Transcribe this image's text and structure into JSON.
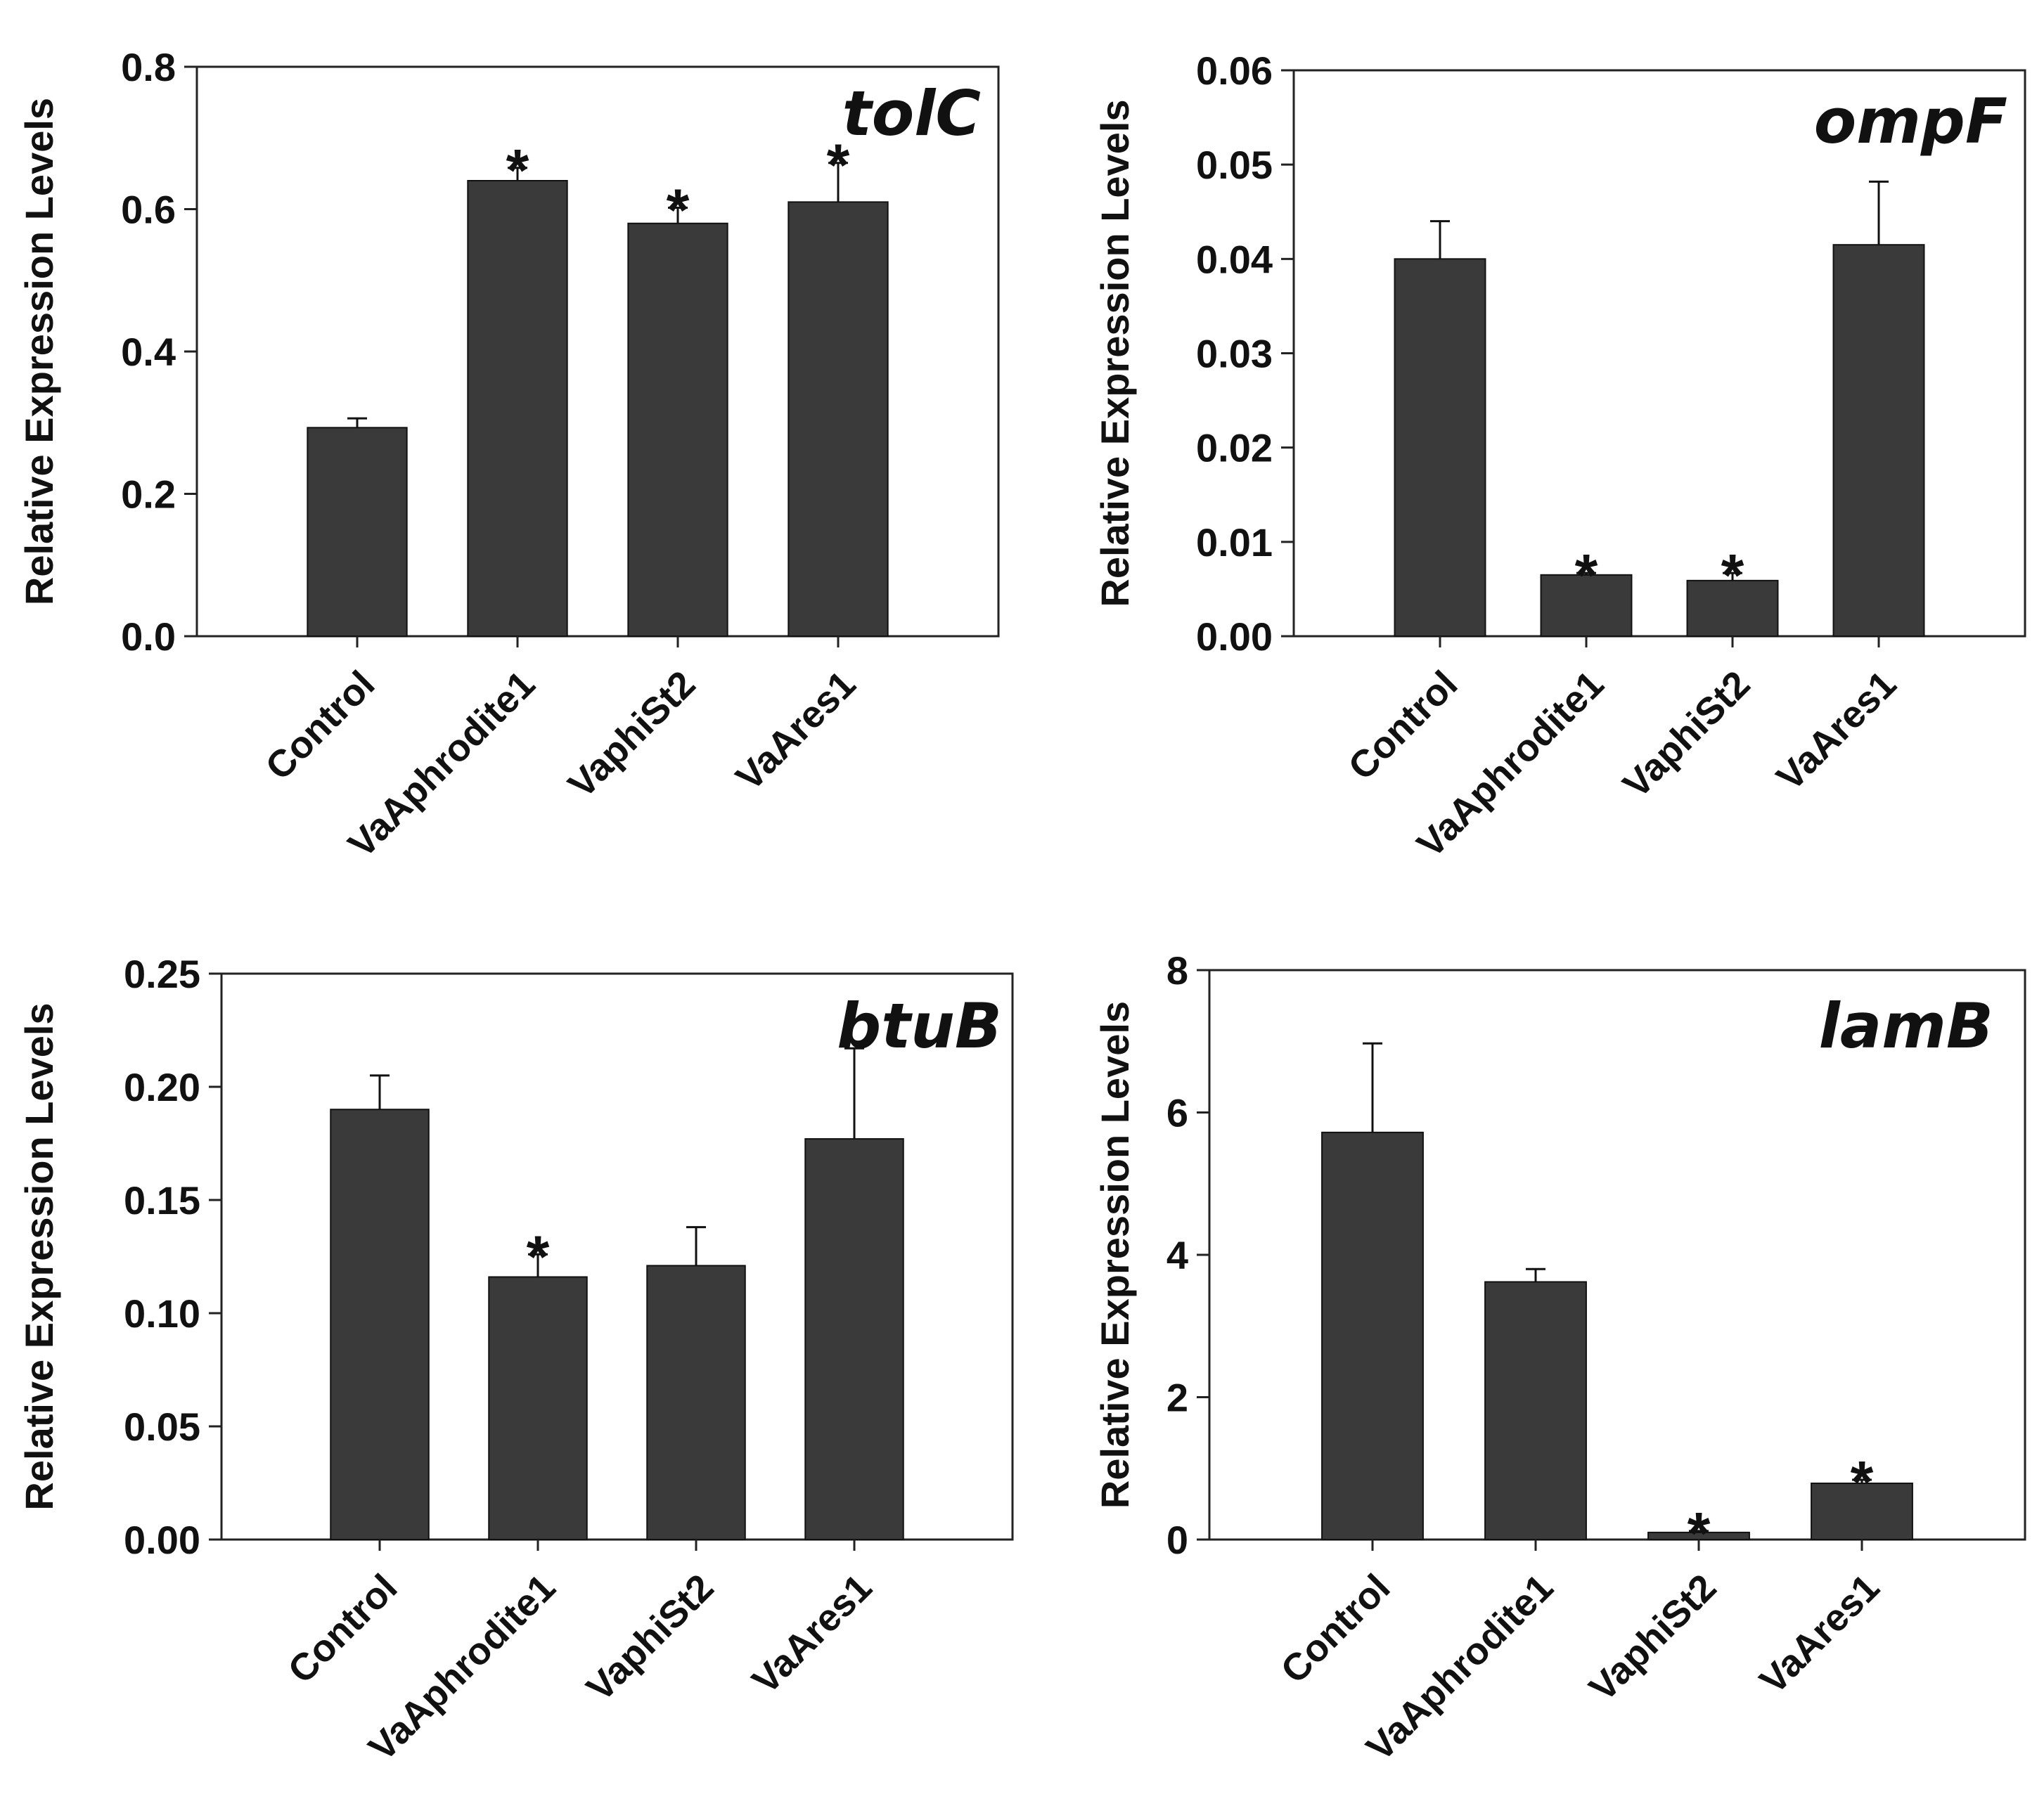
{
  "figure": {
    "bar_color": "#3a3a3a",
    "axis_color": "#222222"
  },
  "chart_data": [
    {
      "type": "bar",
      "title": "tolC",
      "ylabel": "Relative Expression Levels",
      "xlabel": "",
      "categories": [
        "Control",
        "VaAphrodite1",
        "VaphiSt2",
        "VaAres1"
      ],
      "values": [
        0.293,
        0.64,
        0.58,
        0.61
      ],
      "errors": [
        0.013,
        0.018,
        0.022,
        0.055
      ],
      "significant": [
        false,
        true,
        true,
        true
      ],
      "sig_marker": "*",
      "ylim": [
        0,
        0.8
      ],
      "yticks": [
        0.0,
        0.2,
        0.4,
        0.6,
        0.8
      ],
      "ytick_labels": [
        "0.0",
        "0.2",
        "0.4",
        "0.6",
        "0.8"
      ],
      "grid": false
    },
    {
      "type": "bar",
      "title": "ompF",
      "ylabel": "Relative Expression Levels",
      "xlabel": "",
      "categories": [
        "Control",
        "VaAphrodite1",
        "VaphiSt2",
        "VaAres1"
      ],
      "values": [
        0.04,
        0.0065,
        0.0059,
        0.0415
      ],
      "errors": [
        0.004,
        0.0002,
        0.0008,
        0.0067
      ],
      "significant": [
        false,
        true,
        true,
        false
      ],
      "sig_marker": "*",
      "ylim": [
        0,
        0.06
      ],
      "yticks": [
        0.0,
        0.01,
        0.02,
        0.03,
        0.04,
        0.05,
        0.06
      ],
      "ytick_labels": [
        "0.00",
        "0.01",
        "0.02",
        "0.03",
        "0.04",
        "0.05",
        "0.06"
      ],
      "grid": false
    },
    {
      "type": "bar",
      "title": "btuB",
      "ylabel": "Relative Expression Levels",
      "xlabel": "",
      "categories": [
        "Control",
        "VaAphrodite1",
        "VaphiSt2",
        "VaAres1"
      ],
      "values": [
        0.19,
        0.116,
        0.121,
        0.177
      ],
      "errors": [
        0.015,
        0.01,
        0.017,
        0.04
      ],
      "significant": [
        false,
        true,
        false,
        false
      ],
      "sig_marker": "*",
      "ylim": [
        0,
        0.25
      ],
      "yticks": [
        0.0,
        0.05,
        0.1,
        0.15,
        0.2,
        0.25
      ],
      "ytick_labels": [
        "0.00",
        "0.05",
        "0.10",
        "0.15",
        "0.20",
        "0.25"
      ],
      "grid": false
    },
    {
      "type": "bar",
      "title": "lamB",
      "ylabel": "Relative Expression Levels",
      "xlabel": "",
      "categories": [
        "Control",
        "VaAphrodite1",
        "VaphiSt2",
        "VaAres1"
      ],
      "values": [
        5.72,
        3.62,
        0.1,
        0.79
      ],
      "errors": [
        1.25,
        0.18,
        0.02,
        0.05
      ],
      "significant": [
        false,
        false,
        true,
        true
      ],
      "sig_marker": "*",
      "ylim": [
        0,
        8
      ],
      "yticks": [
        0,
        2,
        4,
        6,
        8
      ],
      "ytick_labels": [
        "0",
        "2",
        "4",
        "6",
        "8"
      ],
      "grid": false
    }
  ]
}
